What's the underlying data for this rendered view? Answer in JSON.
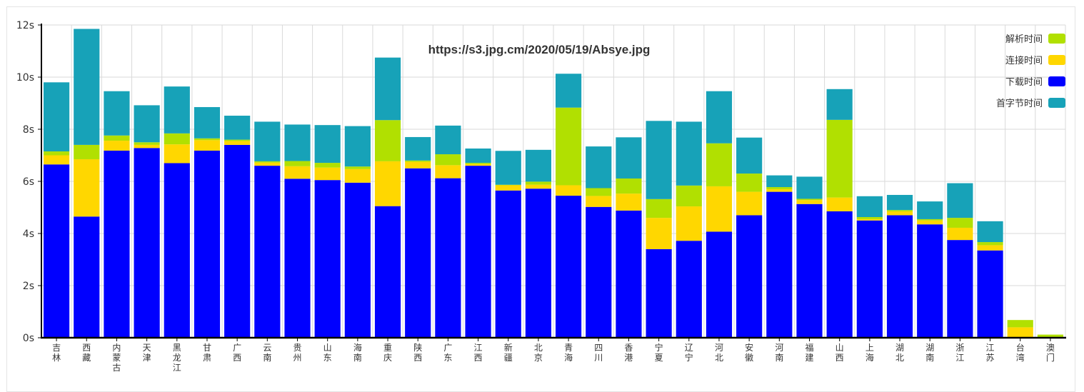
{
  "chart_data": {
    "type": "bar",
    "stacked": true,
    "title": "https://s3.jpg.cm/2020/05/19/Absye.jpg",
    "xlabel": "",
    "ylabel": "",
    "ylim": [
      0,
      12
    ],
    "yticks": [
      "0s",
      "2s",
      "4s",
      "6s",
      "8s",
      "10s",
      "12s"
    ],
    "grid": true,
    "legend_position": "top-right",
    "categories": [
      "吉林",
      "西藏",
      "内蒙古",
      "天津",
      "黑龙江",
      "甘肃",
      "广西",
      "云南",
      "贵州",
      "山东",
      "海南",
      "重庆",
      "陕西",
      "广东",
      "江西",
      "新疆",
      "北京",
      "青海",
      "四川",
      "香港",
      "宁夏",
      "辽宁",
      "河北",
      "安徽",
      "河南",
      "福建",
      "山西",
      "上海",
      "湖北",
      "湖南",
      "浙江",
      "江苏",
      "台湾",
      "澳门"
    ],
    "series": [
      {
        "name": "下载时间",
        "color": "#0000ff",
        "values": [
          6.65,
          4.65,
          7.18,
          7.28,
          6.7,
          7.18,
          7.4,
          6.6,
          6.1,
          6.05,
          5.95,
          5.05,
          6.5,
          6.12,
          6.6,
          5.65,
          5.72,
          5.45,
          5.02,
          4.88,
          3.4,
          3.72,
          4.07,
          4.7,
          5.6,
          5.13,
          4.85,
          4.5,
          4.7,
          4.35,
          3.75,
          3.35,
          0,
          0
        ]
      },
      {
        "name": "连接时间",
        "color": "#ffd700",
        "values": [
          0.35,
          2.2,
          0.38,
          0.12,
          0.72,
          0.4,
          0.15,
          0.12,
          0.48,
          0.48,
          0.52,
          1.72,
          0.25,
          0.5,
          0.06,
          0.2,
          0.15,
          0.4,
          0.42,
          0.65,
          1.2,
          1.32,
          1.74,
          0.9,
          0.1,
          0.15,
          0.53,
          0.05,
          0.15,
          0.15,
          0.47,
          0.2,
          0.4,
          0
        ]
      },
      {
        "name": "解析时间",
        "color": "#b1e001",
        "values": [
          0.15,
          0.55,
          0.2,
          0.1,
          0.42,
          0.07,
          0.05,
          0.05,
          0.2,
          0.18,
          0.1,
          1.58,
          0.05,
          0.42,
          0.05,
          0.02,
          0.12,
          2.98,
          0.3,
          0.58,
          0.72,
          0.8,
          1.65,
          0.7,
          0.08,
          0.05,
          2.98,
          0.08,
          0.05,
          0.05,
          0.38,
          0.12,
          0.28,
          0.12
        ]
      },
      {
        "name": "首字节时间",
        "color": "#17a2b8",
        "values": [
          2.65,
          4.45,
          1.7,
          1.42,
          1.8,
          1.2,
          0.92,
          1.52,
          1.4,
          1.45,
          1.55,
          2.4,
          0.9,
          1.1,
          0.55,
          1.3,
          1.22,
          1.3,
          1.6,
          1.58,
          3.0,
          2.45,
          2.0,
          1.38,
          0.45,
          0.85,
          1.18,
          0.8,
          0.58,
          0.68,
          1.33,
          0.8,
          0,
          0
        ]
      }
    ]
  }
}
